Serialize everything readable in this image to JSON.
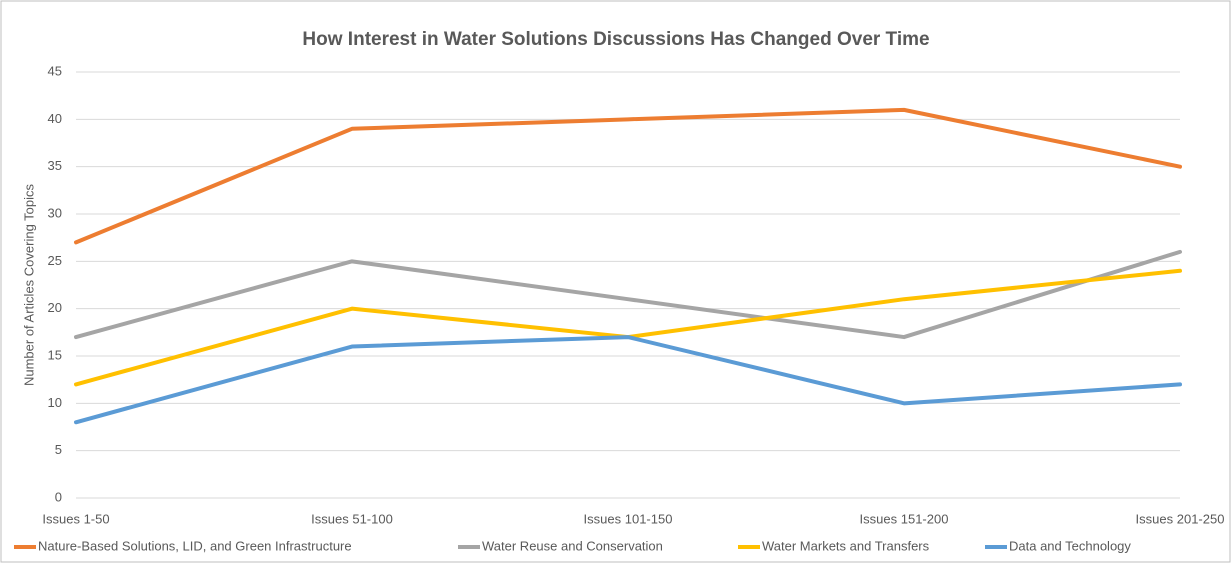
{
  "chart_data": {
    "type": "line",
    "title": "How Interest in Water Solutions Discussions Has Changed Over Time",
    "y_label": "Number of Articles Covering Topics",
    "categories": [
      "Issues 1-50",
      "Issues 51-100",
      "Issues 101-150",
      "Issues 151-200",
      "Issues 201-250"
    ],
    "series": [
      {
        "name": "Nature-Based Solutions, LID, and Green Infrastructure",
        "color": "#ED7D31",
        "values": [
          27,
          39,
          40,
          41,
          35
        ]
      },
      {
        "name": "Water Reuse and Conservation",
        "color": "#A5A5A5",
        "values": [
          17,
          25,
          21,
          17,
          26
        ]
      },
      {
        "name": "Water Markets and Transfers",
        "color": "#FFC000",
        "values": [
          12,
          20,
          17,
          21,
          24
        ]
      },
      {
        "name": "Data and Technology",
        "color": "#5B9BD5",
        "values": [
          8,
          16,
          17,
          10,
          12
        ]
      }
    ],
    "ylim": [
      0,
      45
    ],
    "yticks": [
      0,
      5,
      10,
      15,
      20,
      25,
      30,
      35,
      40,
      45
    ],
    "grid": true,
    "legend": "bottom"
  }
}
